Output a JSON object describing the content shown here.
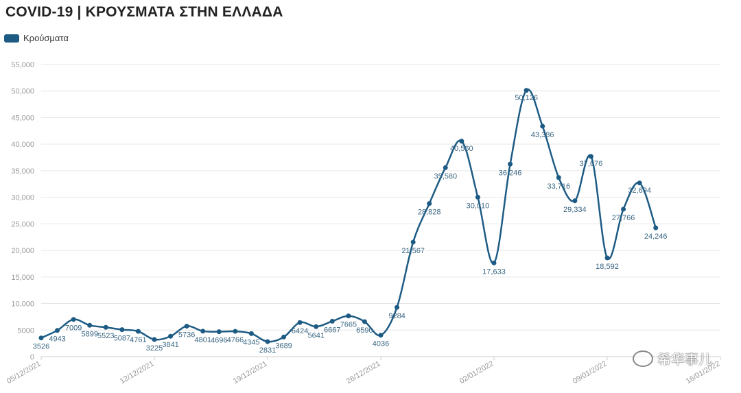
{
  "title": "COVID-19 | ΚΡΟΥΣΜΑΤΑ ΣΤΗΝ ΕΛΛΑΔΑ",
  "colors": {
    "series": "#1d5b84",
    "grid": "#e6e6e6",
    "tick": "#999999"
  },
  "watermark": "希华事儿",
  "chart_data": {
    "type": "line",
    "title": "COVID-19 | ΚΡΟΥΣΜΑΤΑ ΣΤΗΝ ΕΛΛΑΔΑ",
    "legend_position": "top-left",
    "grid": true,
    "ylim": [
      0,
      55000
    ],
    "yticks": [
      0,
      5000,
      10000,
      15000,
      20000,
      25000,
      30000,
      35000,
      40000,
      45000,
      50000,
      55000
    ],
    "ytick_labels": [
      "0",
      "5000",
      "10,000",
      "15,000",
      "20,000",
      "25,000",
      "30,000",
      "35,000",
      "40,000",
      "45,000",
      "50,000",
      "55,000"
    ],
    "x_start": "05/12/2021",
    "x_end": "16/01/2022",
    "xticks": [
      "05/12/2021",
      "12/12/2021",
      "19/12/2021",
      "26/12/2021",
      "02/01/2022",
      "09/01/2022",
      "16/01/2022"
    ],
    "series": [
      {
        "name": "Κρούσματα",
        "points": [
          {
            "x": "05/12/2021",
            "y": 3526,
            "label": "3526"
          },
          {
            "x": "06/12/2021",
            "y": 4943,
            "label": "4943"
          },
          {
            "x": "07/12/2021",
            "y": 7009,
            "label": "7009"
          },
          {
            "x": "08/12/2021",
            "y": 5899,
            "label": "5899"
          },
          {
            "x": "09/12/2021",
            "y": 5523,
            "label": "5523"
          },
          {
            "x": "10/12/2021",
            "y": 5087,
            "label": "5087"
          },
          {
            "x": "11/12/2021",
            "y": 4761,
            "label": "4761"
          },
          {
            "x": "12/12/2021",
            "y": 3225,
            "label": "3225"
          },
          {
            "x": "13/12/2021",
            "y": 3841,
            "label": "3841"
          },
          {
            "x": "14/12/2021",
            "y": 5736,
            "label": "5736"
          },
          {
            "x": "15/12/2021",
            "y": 4801,
            "label": "4801"
          },
          {
            "x": "16/12/2021",
            "y": 4696,
            "label": "4696"
          },
          {
            "x": "17/12/2021",
            "y": 4766,
            "label": "4766"
          },
          {
            "x": "18/12/2021",
            "y": 4345,
            "label": "4345"
          },
          {
            "x": "19/12/2021",
            "y": 2831,
            "label": "2831"
          },
          {
            "x": "20/12/2021",
            "y": 3689,
            "label": "3689"
          },
          {
            "x": "21/12/2021",
            "y": 6424,
            "label": "6424"
          },
          {
            "x": "22/12/2021",
            "y": 5641,
            "label": "5641"
          },
          {
            "x": "23/12/2021",
            "y": 6667,
            "label": "6667"
          },
          {
            "x": "24/12/2021",
            "y": 7665,
            "label": "7665"
          },
          {
            "x": "25/12/2021",
            "y": 6590,
            "label": "6590"
          },
          {
            "x": "26/12/2021",
            "y": 4036,
            "label": "4036"
          },
          {
            "x": "27/12/2021",
            "y": 9284,
            "label": "9284"
          },
          {
            "x": "28/12/2021",
            "y": 21567,
            "label": "21,567"
          },
          {
            "x": "29/12/2021",
            "y": 28828,
            "label": "28,828"
          },
          {
            "x": "30/12/2021",
            "y": 35580,
            "label": "35,580"
          },
          {
            "x": "31/12/2021",
            "y": 40560,
            "label": "40,560"
          },
          {
            "x": "01/01/2022",
            "y": 30010,
            "label": "30,010"
          },
          {
            "x": "02/01/2022",
            "y": 17633,
            "label": "17,633"
          },
          {
            "x": "03/01/2022",
            "y": 36246,
            "label": "36,246"
          },
          {
            "x": "04/01/2022",
            "y": 50126,
            "label": "50,126"
          },
          {
            "x": "05/01/2022",
            "y": 43386,
            "label": "43,386"
          },
          {
            "x": "06/01/2022",
            "y": 33716,
            "label": "33,716"
          },
          {
            "x": "07/01/2022",
            "y": 29334,
            "label": "29,334"
          },
          {
            "x": "08/01/2022",
            "y": 37676,
            "label": "37,676"
          },
          {
            "x": "09/01/2022",
            "y": 18592,
            "label": "18,592"
          },
          {
            "x": "10/01/2022",
            "y": 27766,
            "label": "27,766"
          },
          {
            "x": "11/01/2022",
            "y": 32694,
            "label": "32,694"
          },
          {
            "x": "12/01/2022",
            "y": 24246,
            "label": "24,246"
          }
        ]
      }
    ]
  }
}
